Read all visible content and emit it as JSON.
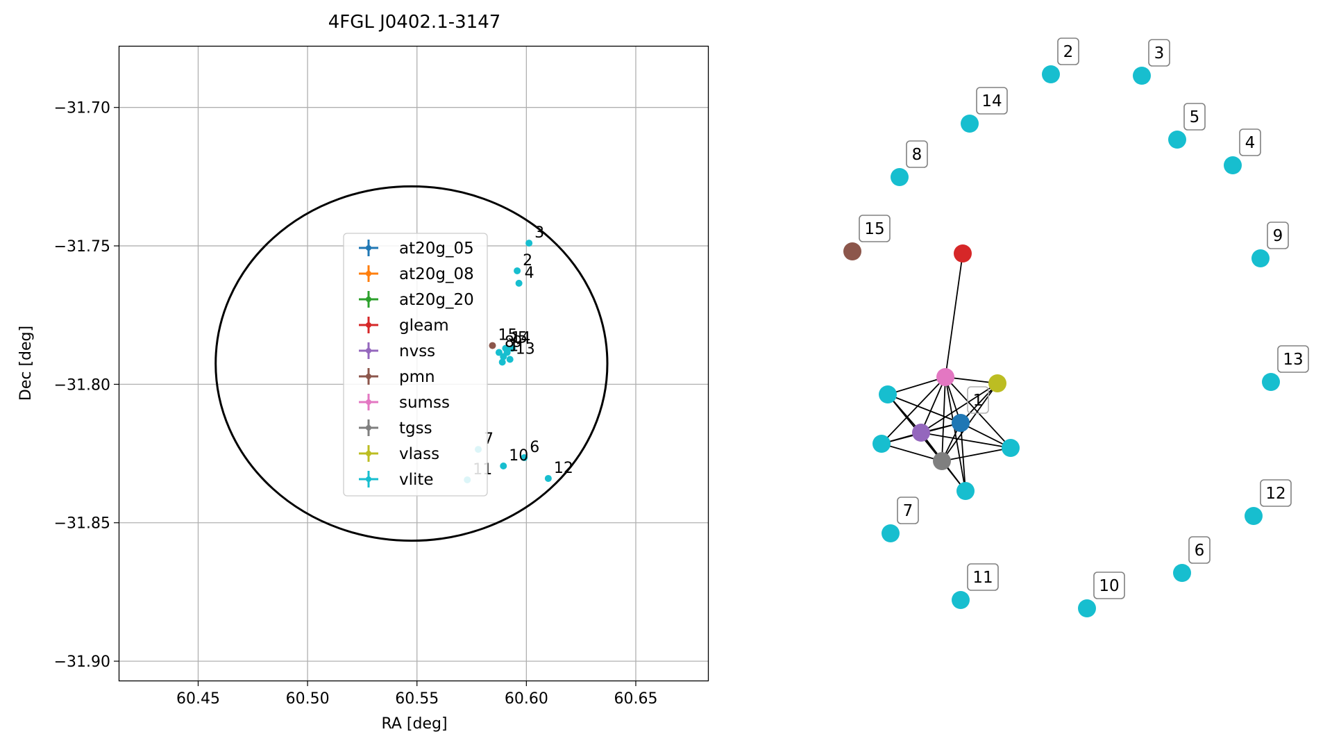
{
  "chart_data": [
    {
      "type": "scatter",
      "title": "4FGL J0402.1-3147",
      "xlabel": "RA [deg]",
      "ylabel": "Dec [deg]",
      "xlim": [
        60.414,
        60.683
      ],
      "ylim": [
        -31.907,
        -31.678
      ],
      "xticks": [
        60.45,
        60.5,
        60.55,
        60.6,
        60.65
      ],
      "xtick_labels": [
        "60.45",
        "60.50",
        "60.55",
        "60.60",
        "60.65"
      ],
      "yticks": [
        -31.7,
        -31.75,
        -31.8,
        -31.85,
        -31.9
      ],
      "ytick_labels": [
        "−31.70",
        "−31.75",
        "−31.80",
        "−31.85",
        "−31.90"
      ],
      "grid": true,
      "ellipse": {
        "center": [
          60.5475,
          -31.7925
        ],
        "ra_radius": 0.0895,
        "dec_radius": 0.064
      },
      "legend": {
        "placement": "center",
        "entries": [
          {
            "name": "at20g_05",
            "color": "#1f77b4"
          },
          {
            "name": "at20g_08",
            "color": "#ff7f0e"
          },
          {
            "name": "at20g_20",
            "color": "#2ca02c"
          },
          {
            "name": "gleam",
            "color": "#d62728"
          },
          {
            "name": "nvss",
            "color": "#9467bd"
          },
          {
            "name": "pmn",
            "color": "#8c564b"
          },
          {
            "name": "sumss",
            "color": "#e377c2"
          },
          {
            "name": "tgss",
            "color": "#7f7f7f"
          },
          {
            "name": "vlass",
            "color": "#bcbd22"
          },
          {
            "name": "vlite",
            "color": "#17becf"
          }
        ]
      },
      "points": [
        {
          "label": "3",
          "ra": 60.6012,
          "dec": -31.749,
          "color": "#17becf"
        },
        {
          "label": "2",
          "ra": 60.5958,
          "dec": -31.759,
          "color": "#17becf"
        },
        {
          "label": "4",
          "ra": 60.5966,
          "dec": -31.7635,
          "color": "#17becf"
        },
        {
          "label": "15",
          "ra": 60.5845,
          "dec": -31.786,
          "color": "#8c564b"
        },
        {
          "label": "14",
          "ra": 60.5905,
          "dec": -31.787,
          "color": "#17becf"
        },
        {
          "label": "5",
          "ra": 60.5935,
          "dec": -31.787,
          "color": "#17becf"
        },
        {
          "label": "8",
          "ra": 60.5875,
          "dec": -31.7885,
          "color": "#17becf"
        },
        {
          "label": "9",
          "ra": 60.5912,
          "dec": -31.7885,
          "color": "#17becf"
        },
        {
          "label": "1",
          "ra": 60.5895,
          "dec": -31.79,
          "color": "#17becf"
        },
        {
          "label": "13",
          "ra": 60.5925,
          "dec": -31.791,
          "color": "#17becf"
        },
        {
          "label": "",
          "ra": 60.589,
          "dec": -31.792,
          "color": "#17becf"
        },
        {
          "label": "7",
          "ra": 60.578,
          "dec": -31.8235,
          "color": "#17becf"
        },
        {
          "label": "6",
          "ra": 60.599,
          "dec": -31.8265,
          "color": "#17becf"
        },
        {
          "label": "10",
          "ra": 60.5895,
          "dec": -31.8295,
          "color": "#17becf"
        },
        {
          "label": "12",
          "ra": 60.61,
          "dec": -31.834,
          "color": "#17becf"
        },
        {
          "label": "11",
          "ra": 60.573,
          "dec": -31.8345,
          "color": "#17becf"
        }
      ]
    },
    {
      "type": "network",
      "nodes": [
        {
          "id": "n2",
          "label": "2",
          "color": "#17becf"
        },
        {
          "id": "n3",
          "label": "3",
          "color": "#17becf"
        },
        {
          "id": "n14",
          "label": "14",
          "color": "#17becf"
        },
        {
          "id": "n5",
          "label": "5",
          "color": "#17becf"
        },
        {
          "id": "n4",
          "label": "4",
          "color": "#17becf"
        },
        {
          "id": "n8",
          "label": "8",
          "color": "#17becf"
        },
        {
          "id": "n15",
          "label": "15",
          "color": "#8c564b"
        },
        {
          "id": "n9",
          "label": "9",
          "color": "#17becf"
        },
        {
          "id": "gleam",
          "label": "",
          "color": "#d62728"
        },
        {
          "id": "n13",
          "label": "13",
          "color": "#17becf"
        },
        {
          "id": "sumss",
          "label": "",
          "color": "#e377c2"
        },
        {
          "id": "vlass",
          "label": "",
          "color": "#bcbd22"
        },
        {
          "id": "c1",
          "label": "",
          "color": "#17becf"
        },
        {
          "id": "at20g",
          "label": "1",
          "color": "#1f77b4"
        },
        {
          "id": "nvss",
          "label": "",
          "color": "#9467bd"
        },
        {
          "id": "c2",
          "label": "",
          "color": "#17becf"
        },
        {
          "id": "c3",
          "label": "",
          "color": "#17becf"
        },
        {
          "id": "tgss",
          "label": "",
          "color": "#7f7f7f"
        },
        {
          "id": "c4",
          "label": "",
          "color": "#17becf"
        },
        {
          "id": "n7",
          "label": "7",
          "color": "#17becf"
        },
        {
          "id": "n12",
          "label": "12",
          "color": "#17becf"
        },
        {
          "id": "n6",
          "label": "6",
          "color": "#17becf"
        },
        {
          "id": "n11",
          "label": "11",
          "color": "#17becf"
        },
        {
          "id": "n10",
          "label": "10",
          "color": "#17becf"
        }
      ],
      "edges": [
        [
          "gleam",
          "sumss"
        ],
        [
          "sumss",
          "vlass"
        ],
        [
          "sumss",
          "c1"
        ],
        [
          "sumss",
          "at20g"
        ],
        [
          "sumss",
          "nvss"
        ],
        [
          "sumss",
          "c2"
        ],
        [
          "sumss",
          "c3"
        ],
        [
          "sumss",
          "tgss"
        ],
        [
          "sumss",
          "c4"
        ],
        [
          "vlass",
          "at20g"
        ],
        [
          "vlass",
          "nvss"
        ],
        [
          "vlass",
          "tgss"
        ],
        [
          "c1",
          "at20g"
        ],
        [
          "c1",
          "nvss"
        ],
        [
          "c1",
          "tgss"
        ],
        [
          "at20g",
          "nvss"
        ],
        [
          "at20g",
          "c2"
        ],
        [
          "at20g",
          "c3"
        ],
        [
          "at20g",
          "tgss"
        ],
        [
          "at20g",
          "c4"
        ],
        [
          "nvss",
          "c2"
        ],
        [
          "nvss",
          "c3"
        ],
        [
          "nvss",
          "tgss"
        ],
        [
          "nvss",
          "c4"
        ],
        [
          "c2",
          "tgss"
        ],
        [
          "c3",
          "tgss"
        ],
        [
          "tgss",
          "c4"
        ]
      ]
    }
  ]
}
